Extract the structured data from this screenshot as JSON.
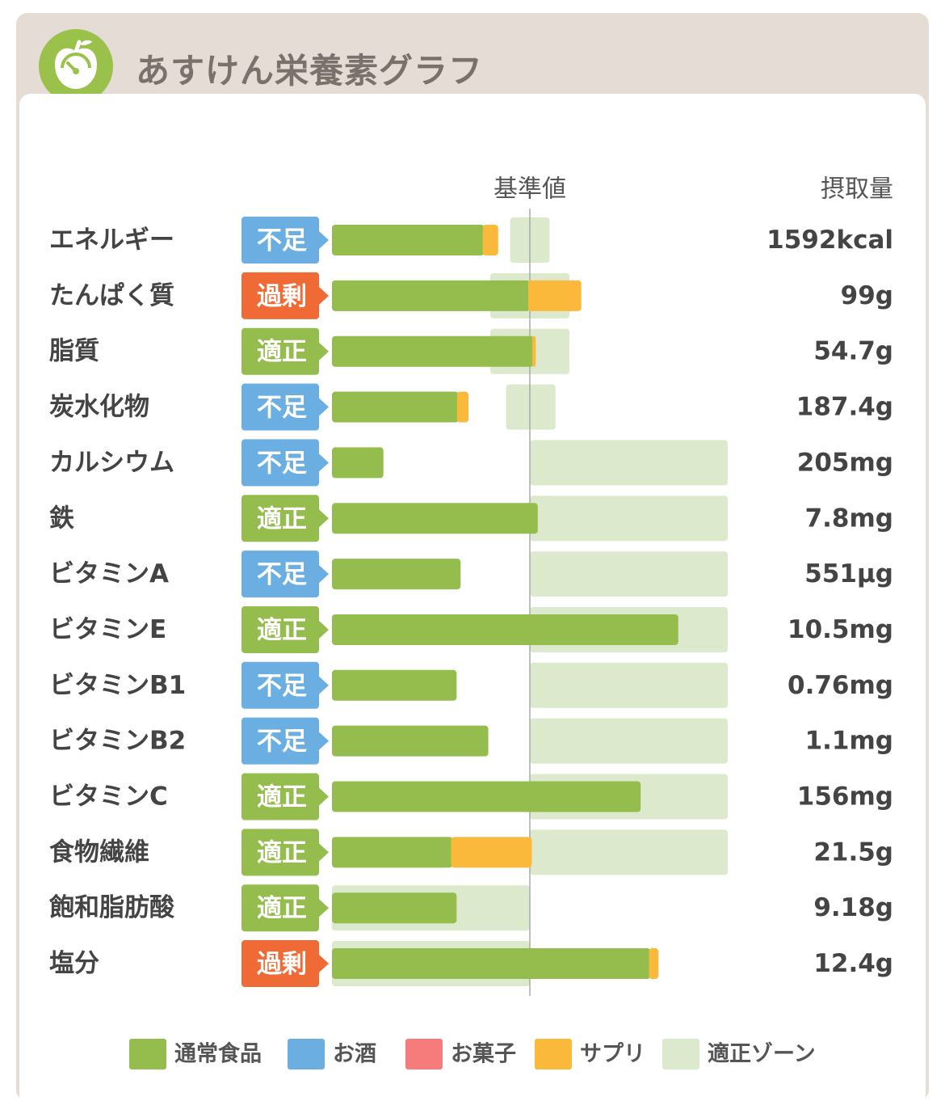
{
  "header": {
    "title": "あすけん栄養素グラフ",
    "logo_icon": "apple-scale-icon"
  },
  "chart_data": {
    "type": "bar",
    "orientation": "horizontal",
    "stacked": true,
    "reference_label": "基準値",
    "value_column_label": "摂取量",
    "status_colors": {
      "不足": "#6aaee2",
      "過剰": "#ef6a35",
      "適正": "#94bd4e"
    },
    "series_colors": {
      "通常食品": "#94bd4e",
      "お酒": "#6aaee2",
      "お菓子": "#f67c7c",
      "サプリ": "#fbb93b",
      "適正ゾーン": "#dde9cc"
    },
    "note": "",
    "rows": [
      {
        "name": "エネルギー",
        "status": "不足",
        "value": "1592kcal",
        "food": 0.77,
        "supp": 0.07,
        "zone": [
          0.9,
          1.1
        ]
      },
      {
        "name": "たんぱく質",
        "status": "過剰",
        "value": "99g",
        "food": 1.0,
        "supp": 0.26,
        "zone": [
          0.8,
          1.2
        ]
      },
      {
        "name": "脂質",
        "status": "適正",
        "value": "54.7g",
        "food": 1.02,
        "supp": 0.01,
        "zone": [
          0.8,
          1.2
        ]
      },
      {
        "name": "炭水化物",
        "status": "不足",
        "value": "187.4g",
        "food": 0.64,
        "supp": 0.05,
        "zone": [
          0.88,
          1.13
        ]
      },
      {
        "name": "カルシウム",
        "status": "不足",
        "value": "205mg",
        "food": 0.26,
        "supp": 0,
        "zone": [
          1.0,
          2.0
        ]
      },
      {
        "name": "鉄",
        "status": "適正",
        "value": "7.8mg",
        "food": 1.04,
        "supp": 0,
        "zone": [
          1.0,
          2.0
        ]
      },
      {
        "name": "ビタミンA",
        "status": "不足",
        "value": "551μg",
        "food": 0.65,
        "supp": 0,
        "zone": [
          1.0,
          2.0
        ]
      },
      {
        "name": "ビタミンE",
        "status": "適正",
        "value": "10.5mg",
        "food": 1.75,
        "supp": 0,
        "zone": [
          1.0,
          2.0
        ]
      },
      {
        "name": "ビタミンB1",
        "status": "不足",
        "value": "0.76mg",
        "food": 0.63,
        "supp": 0,
        "zone": [
          1.0,
          2.0
        ]
      },
      {
        "name": "ビタミンB2",
        "status": "不足",
        "value": "1.1mg",
        "food": 0.79,
        "supp": 0,
        "zone": [
          1.0,
          2.0
        ]
      },
      {
        "name": "ビタミンC",
        "status": "適正",
        "value": "156mg",
        "food": 1.56,
        "supp": 0,
        "zone": [
          1.0,
          2.0
        ]
      },
      {
        "name": "食物繊維",
        "status": "適正",
        "value": "21.5g",
        "food": 0.61,
        "supp": 0.4,
        "zone": [
          1.0,
          2.0
        ]
      },
      {
        "name": "飽和脂肪酸",
        "status": "適正",
        "value": "9.18g",
        "food": 0.63,
        "supp": 0,
        "zone": [
          0.0,
          1.0
        ]
      },
      {
        "name": "塩分",
        "status": "過剰",
        "value": "12.4g",
        "food": 1.61,
        "supp": 0.04,
        "zone": [
          0.0,
          1.0
        ]
      }
    ],
    "legend": [
      "通常食品",
      "お酒",
      "お菓子",
      "サプリ",
      "適正ゾーン"
    ],
    "legend_position": "bottom"
  }
}
